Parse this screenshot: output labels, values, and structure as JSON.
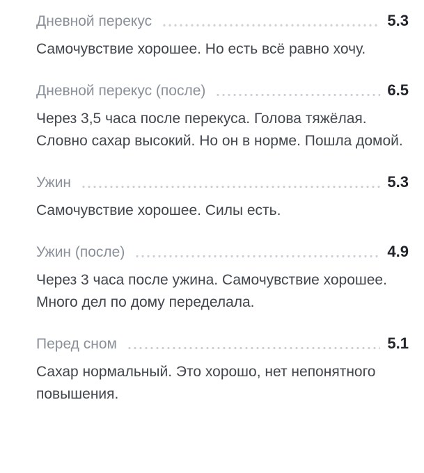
{
  "colors": {
    "bg": "#ffffff",
    "label": "#8a9099",
    "value": "#21252b",
    "description": "#41464d",
    "dots": "#ccd0d6"
  },
  "entries": [
    {
      "label": "Дневной перекус",
      "value": "5.3",
      "description": "Самочувствие хорошее. Но есть всё равно хочу."
    },
    {
      "label": "Дневной перекус (после)",
      "value": "6.5",
      "description": "Через 3,5 часа после перекуса. Голова тяжёлая. Словно сахар высокий. Но он в норме. Пошла домой."
    },
    {
      "label": "Ужин",
      "value": "5.3",
      "description": "Самочувствие хорошее. Силы есть."
    },
    {
      "label": "Ужин (после)",
      "value": "4.9",
      "description": "Через 3 часа после ужина. Самочувствие хорошее. Много дел по дому переделала."
    },
    {
      "label": "Перед сном",
      "value": "5.1",
      "description": "Сахар нормальный. Это хорошо, нет непонятного повышения."
    }
  ]
}
